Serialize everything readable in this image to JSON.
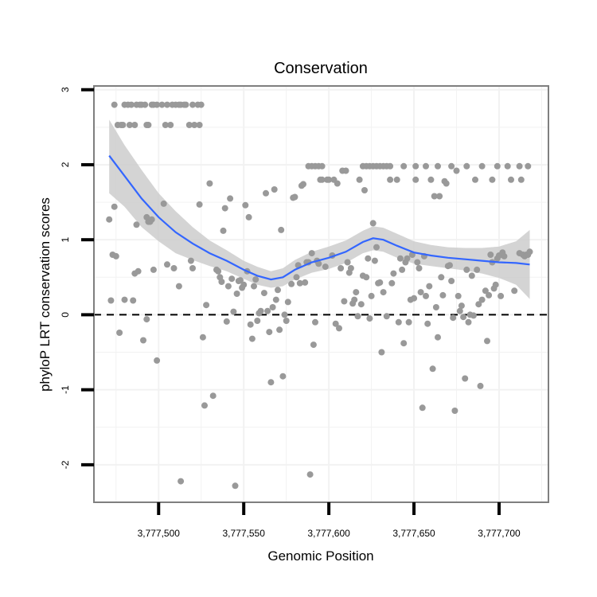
{
  "chart_data": {
    "type": "scatter",
    "title": "Conservation",
    "xlabel": "Genomic Position",
    "ylabel": "phyloP LRT conservation scores",
    "xlim": [
      3777462,
      3777729
    ],
    "ylim": [
      -2.5,
      3.05
    ],
    "x_ticks": [
      3777500,
      3777550,
      3777600,
      3777650,
      3777700
    ],
    "x_tick_labels": [
      "3,777,500",
      "3,777,550",
      "3,777,600",
      "3,777,650",
      "3,777,700"
    ],
    "y_ticks": [
      -2,
      -1,
      0,
      1,
      2,
      3
    ],
    "y_tick_labels": [
      "-2",
      "-1",
      "0",
      "1",
      "2",
      "3"
    ],
    "grid": true,
    "reference_line": {
      "y": 0,
      "style": "dashed"
    },
    "colors": {
      "points": "#999999",
      "smooth_line": "#3366ff",
      "confidence_band": "#cccccc",
      "panel_border": "#7f7f7f",
      "grid": "#f2f2f2"
    },
    "points": [
      [
        3777474,
        2.8
      ],
      [
        3777476,
        2.53
      ],
      [
        3777478,
        2.53
      ],
      [
        3777479,
        2.53
      ],
      [
        3777480,
        2.8
      ],
      [
        3777482,
        2.8
      ],
      [
        3777483,
        2.53
      ],
      [
        3777484,
        2.8
      ],
      [
        3777486,
        2.53
      ],
      [
        3777487,
        2.8
      ],
      [
        3777489,
        2.8
      ],
      [
        3777490,
        2.8
      ],
      [
        3777492,
        2.8
      ],
      [
        3777493,
        2.53
      ],
      [
        3777494,
        2.53
      ],
      [
        3777496,
        2.8
      ],
      [
        3777497,
        2.8
      ],
      [
        3777499,
        2.8
      ],
      [
        3777502,
        2.8
      ],
      [
        3777504,
        2.53
      ],
      [
        3777505,
        2.8
      ],
      [
        3777507,
        2.53
      ],
      [
        3777508,
        2.8
      ],
      [
        3777510,
        2.8
      ],
      [
        3777512,
        2.8
      ],
      [
        3777513,
        2.8
      ],
      [
        3777515,
        2.8
      ],
      [
        3777516,
        2.8
      ],
      [
        3777518,
        2.53
      ],
      [
        3777520,
        2.8
      ],
      [
        3777521,
        2.53
      ],
      [
        3777523,
        2.8
      ],
      [
        3777524,
        2.53
      ],
      [
        3777525,
        2.8
      ],
      [
        3777471,
        1.27
      ],
      [
        3777473,
        0.8
      ],
      [
        3777474,
        1.44
      ],
      [
        3777475,
        0.78
      ],
      [
        3777477,
        -0.24
      ],
      [
        3777472,
        0.19
      ],
      [
        3777480,
        0.2
      ],
      [
        3777485,
        0.19
      ],
      [
        3777486,
        0.55
      ],
      [
        3777488,
        0.58
      ],
      [
        3777487,
        1.2
      ],
      [
        3777493,
        1.3
      ],
      [
        3777494,
        1.24
      ],
      [
        3777495,
        1.24
      ],
      [
        3777496,
        1.27
      ],
      [
        3777491,
        -0.34
      ],
      [
        3777493,
        -0.06
      ],
      [
        3777499,
        -0.61
      ],
      [
        3777497,
        0.6
      ],
      [
        3777505,
        0.67
      ],
      [
        3777503,
        1.48
      ],
      [
        3777509,
        0.62
      ],
      [
        3777513,
        -2.22
      ],
      [
        3777512,
        0.38
      ],
      [
        3777519,
        0.72
      ],
      [
        3777520,
        0.62
      ],
      [
        3777524,
        1.47
      ],
      [
        3777526,
        -0.3
      ],
      [
        3777527,
        -1.21
      ],
      [
        3777528,
        0.13
      ],
      [
        3777530,
        1.75
      ],
      [
        3777532,
        -1.08
      ],
      [
        3777534,
        0.6
      ],
      [
        3777535,
        0.58
      ],
      [
        3777536,
        0.5
      ],
      [
        3777537,
        0.44
      ],
      [
        3777538,
        1.12
      ],
      [
        3777539,
        1.42
      ],
      [
        3777540,
        -0.09
      ],
      [
        3777541,
        0.38
      ],
      [
        3777542,
        1.55
      ],
      [
        3777543,
        0.48
      ],
      [
        3777544,
        0.04
      ],
      [
        3777545,
        -2.28
      ],
      [
        3777546,
        0.28
      ],
      [
        3777547,
        0.45
      ],
      [
        3777548,
        0.46
      ],
      [
        3777549,
        0.36
      ],
      [
        3777550,
        0.4
      ],
      [
        3777551,
        1.46
      ],
      [
        3777552,
        0.58
      ],
      [
        3777553,
        1.3
      ],
      [
        3777554,
        -0.13
      ],
      [
        3777555,
        -0.32
      ],
      [
        3777556,
        0.38
      ],
      [
        3777557,
        0.47
      ],
      [
        3777558,
        -0.08
      ],
      [
        3777559,
        0.02
      ],
      [
        3777560,
        0.05
      ],
      [
        3777562,
        0.29
      ],
      [
        3777563,
        1.62
      ],
      [
        3777564,
        0.05
      ],
      [
        3777565,
        -0.23
      ],
      [
        3777566,
        -0.9
      ],
      [
        3777567,
        0.1
      ],
      [
        3777568,
        1.67
      ],
      [
        3777569,
        0.2
      ],
      [
        3777570,
        0.33
      ],
      [
        3777571,
        -0.2
      ],
      [
        3777572,
        1.13
      ],
      [
        3777573,
        -0.82
      ],
      [
        3777574,
        0.0
      ],
      [
        3777575,
        -0.08
      ],
      [
        3777576,
        0.17
      ],
      [
        3777578,
        0.41
      ],
      [
        3777579,
        1.56
      ],
      [
        3777580,
        1.57
      ],
      [
        3777581,
        0.5
      ],
      [
        3777582,
        0.66
      ],
      [
        3777583,
        0.42
      ],
      [
        3777584,
        1.72
      ],
      [
        3777585,
        1.74
      ],
      [
        3777586,
        0.43
      ],
      [
        3777587,
        0.7
      ],
      [
        3777588,
        0.7
      ],
      [
        3777589,
        -2.13
      ],
      [
        3777590,
        0.82
      ],
      [
        3777591,
        -0.4
      ],
      [
        3777592,
        -0.1
      ],
      [
        3777593,
        0.72
      ],
      [
        3777594,
        0.68
      ],
      [
        3777595,
        1.8
      ],
      [
        3777596,
        1.8
      ],
      [
        3777598,
        0.64
      ],
      [
        3777599,
        1.8
      ],
      [
        3777600,
        1.8
      ],
      [
        3777602,
        0.79
      ],
      [
        3777603,
        1.8
      ],
      [
        3777604,
        -0.12
      ],
      [
        3777605,
        1.75
      ],
      [
        3777606,
        -0.18
      ],
      [
        3777607,
        0.62
      ],
      [
        3777608,
        1.92
      ],
      [
        3777609,
        0.18
      ],
      [
        3777610,
        1.92
      ],
      [
        3777611,
        0.7
      ],
      [
        3777612,
        0.56
      ],
      [
        3777613,
        0.62
      ],
      [
        3777614,
        0.15
      ],
      [
        3777615,
        0.2
      ],
      [
        3777616,
        0.3
      ],
      [
        3777617,
        -0.02
      ],
      [
        3777618,
        1.8
      ],
      [
        3777619,
        0.14
      ],
      [
        3777620,
        0.52
      ],
      [
        3777621,
        1.66
      ],
      [
        3777622,
        0.5
      ],
      [
        3777623,
        0.75
      ],
      [
        3777624,
        -0.05
      ],
      [
        3777625,
        0.25
      ],
      [
        3777626,
        1.22
      ],
      [
        3777627,
        0.72
      ],
      [
        3777628,
        0.9
      ],
      [
        3777629,
        0.42
      ],
      [
        3777630,
        0.43
      ],
      [
        3777631,
        -0.5
      ],
      [
        3777632,
        0.3
      ],
      [
        3777634,
        -0.02
      ],
      [
        3777636,
        1.8
      ],
      [
        3777637,
        0.42
      ],
      [
        3777638,
        0.55
      ],
      [
        3777640,
        1.8
      ],
      [
        3777641,
        -0.1
      ],
      [
        3777642,
        0.75
      ],
      [
        3777643,
        0.6
      ],
      [
        3777644,
        -0.38
      ],
      [
        3777645,
        0.7
      ],
      [
        3777646,
        0.75
      ],
      [
        3777647,
        -0.1
      ],
      [
        3777648,
        0.2
      ],
      [
        3777649,
        0.8
      ],
      [
        3777650,
        0.22
      ],
      [
        3777651,
        1.8
      ],
      [
        3777652,
        0.7
      ],
      [
        3777653,
        0.62
      ],
      [
        3777654,
        0.3
      ],
      [
        3777655,
        -1.24
      ],
      [
        3777656,
        0.78
      ],
      [
        3777657,
        0.25
      ],
      [
        3777658,
        -0.12
      ],
      [
        3777659,
        0.38
      ],
      [
        3777660,
        1.8
      ],
      [
        3777661,
        -0.72
      ],
      [
        3777662,
        1.58
      ],
      [
        3777663,
        0.1
      ],
      [
        3777664,
        -0.3
      ],
      [
        3777665,
        1.58
      ],
      [
        3777666,
        0.5
      ],
      [
        3777667,
        0.26
      ],
      [
        3777668,
        1.78
      ],
      [
        3777669,
        1.75
      ],
      [
        3777670,
        0.65
      ],
      [
        3777671,
        0.66
      ],
      [
        3777672,
        0.45
      ],
      [
        3777673,
        -0.04
      ],
      [
        3777674,
        -1.28
      ],
      [
        3777675,
        1.92
      ],
      [
        3777676,
        0.25
      ],
      [
        3777677,
        0.05
      ],
      [
        3777678,
        0.12
      ],
      [
        3777679,
        -0.03
      ],
      [
        3777680,
        -0.85
      ],
      [
        3777681,
        0.6
      ],
      [
        3777682,
        -0.1
      ],
      [
        3777683,
        0.0
      ],
      [
        3777684,
        0.52
      ],
      [
        3777685,
        -0.01
      ],
      [
        3777686,
        1.8
      ],
      [
        3777687,
        0.6
      ],
      [
        3777688,
        0.14
      ],
      [
        3777689,
        -0.95
      ],
      [
        3777690,
        0.2
      ],
      [
        3777692,
        0.32
      ],
      [
        3777693,
        -0.35
      ],
      [
        3777694,
        0.26
      ],
      [
        3777695,
        0.8
      ],
      [
        3777696,
        0.7
      ],
      [
        3777697,
        0.35
      ],
      [
        3777698,
        0.4
      ],
      [
        3777699,
        0.75
      ],
      [
        3777700,
        0.79
      ],
      [
        3777701,
        0.25
      ],
      [
        3777702,
        0.83
      ],
      [
        3777703,
        0.78
      ],
      [
        3777588,
        1.98
      ],
      [
        3777590,
        1.98
      ],
      [
        3777592,
        1.98
      ],
      [
        3777594,
        1.98
      ],
      [
        3777596,
        1.98
      ],
      [
        3777620,
        1.98
      ],
      [
        3777622,
        1.98
      ],
      [
        3777624,
        1.98
      ],
      [
        3777626,
        1.98
      ],
      [
        3777628,
        1.98
      ],
      [
        3777630,
        1.98
      ],
      [
        3777632,
        1.98
      ],
      [
        3777634,
        1.98
      ],
      [
        3777636,
        1.98
      ],
      [
        3777644,
        1.98
      ],
      [
        3777651,
        1.98
      ],
      [
        3777657,
        1.98
      ],
      [
        3777664,
        1.98
      ],
      [
        3777672,
        1.98
      ],
      [
        3777681,
        1.98
      ],
      [
        3777690,
        1.98
      ],
      [
        3777699,
        1.98
      ],
      [
        3777705,
        1.98
      ],
      [
        3777712,
        1.98
      ],
      [
        3777717,
        1.98
      ],
      [
        3777696,
        1.8
      ],
      [
        3777707,
        1.8
      ],
      [
        3777713,
        1.8
      ],
      [
        3777712,
        0.82
      ],
      [
        3777714,
        0.8
      ],
      [
        3777715,
        0.78
      ],
      [
        3777716,
        0.8
      ],
      [
        3777717,
        0.8
      ],
      [
        3777718,
        0.84
      ],
      [
        3777709,
        0.32
      ]
    ],
    "smooth_line": [
      [
        3777471,
        2.12
      ],
      [
        3777480,
        1.85
      ],
      [
        3777490,
        1.55
      ],
      [
        3777500,
        1.3
      ],
      [
        3777510,
        1.1
      ],
      [
        3777520,
        0.95
      ],
      [
        3777530,
        0.82
      ],
      [
        3777540,
        0.72
      ],
      [
        3777550,
        0.6
      ],
      [
        3777558,
        0.52
      ],
      [
        3777566,
        0.47
      ],
      [
        3777573,
        0.5
      ],
      [
        3777580,
        0.6
      ],
      [
        3777590,
        0.7
      ],
      [
        3777600,
        0.76
      ],
      [
        3777610,
        0.84
      ],
      [
        3777620,
        0.97
      ],
      [
        3777626,
        1.02
      ],
      [
        3777632,
        1.0
      ],
      [
        3777640,
        0.92
      ],
      [
        3777650,
        0.83
      ],
      [
        3777660,
        0.79
      ],
      [
        3777670,
        0.76
      ],
      [
        3777680,
        0.74
      ],
      [
        3777690,
        0.72
      ],
      [
        3777700,
        0.7
      ],
      [
        3777710,
        0.69
      ],
      [
        3777718,
        0.67
      ]
    ],
    "confidence_band": {
      "upper": [
        [
          3777471,
          2.6
        ],
        [
          3777480,
          2.26
        ],
        [
          3777490,
          1.93
        ],
        [
          3777500,
          1.62
        ],
        [
          3777510,
          1.38
        ],
        [
          3777520,
          1.17
        ],
        [
          3777530,
          0.99
        ],
        [
          3777540,
          0.86
        ],
        [
          3777550,
          0.72
        ],
        [
          3777558,
          0.64
        ],
        [
          3777566,
          0.58
        ],
        [
          3777573,
          0.62
        ],
        [
          3777580,
          0.73
        ],
        [
          3777590,
          0.84
        ],
        [
          3777600,
          0.91
        ],
        [
          3777610,
          0.99
        ],
        [
          3777620,
          1.12
        ],
        [
          3777626,
          1.18
        ],
        [
          3777632,
          1.16
        ],
        [
          3777640,
          1.08
        ],
        [
          3777650,
          0.98
        ],
        [
          3777660,
          0.93
        ],
        [
          3777670,
          0.9
        ],
        [
          3777680,
          0.89
        ],
        [
          3777690,
          0.89
        ],
        [
          3777700,
          0.91
        ],
        [
          3777710,
          0.98
        ],
        [
          3777718,
          1.13
        ]
      ],
      "lower": [
        [
          3777471,
          1.62
        ],
        [
          3777480,
          1.44
        ],
        [
          3777490,
          1.17
        ],
        [
          3777500,
          0.98
        ],
        [
          3777510,
          0.82
        ],
        [
          3777520,
          0.73
        ],
        [
          3777530,
          0.65
        ],
        [
          3777540,
          0.58
        ],
        [
          3777550,
          0.48
        ],
        [
          3777558,
          0.4
        ],
        [
          3777566,
          0.36
        ],
        [
          3777573,
          0.38
        ],
        [
          3777580,
          0.47
        ],
        [
          3777590,
          0.56
        ],
        [
          3777600,
          0.61
        ],
        [
          3777610,
          0.69
        ],
        [
          3777620,
          0.82
        ],
        [
          3777626,
          0.86
        ],
        [
          3777632,
          0.84
        ],
        [
          3777640,
          0.76
        ],
        [
          3777650,
          0.68
        ],
        [
          3777660,
          0.65
        ],
        [
          3777670,
          0.62
        ],
        [
          3777680,
          0.59
        ],
        [
          3777690,
          0.55
        ],
        [
          3777700,
          0.49
        ],
        [
          3777710,
          0.4
        ],
        [
          3777718,
          0.21
        ]
      ]
    }
  }
}
